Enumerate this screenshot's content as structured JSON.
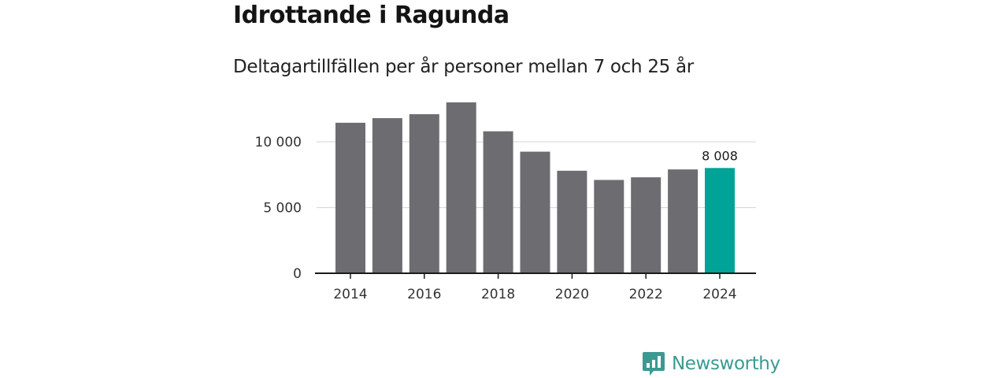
{
  "chart_data": {
    "type": "bar",
    "title": "Idrottande i Ragunda",
    "subtitle": "Deltagartillfällen per år personer mellan 7 och 25 år",
    "categories": [
      "2014",
      "2015",
      "2016",
      "2017",
      "2018",
      "2019",
      "2020",
      "2021",
      "2022",
      "2023",
      "2024"
    ],
    "values": [
      11450,
      11800,
      12100,
      13000,
      10800,
      9250,
      7800,
      7100,
      7300,
      7900,
      8008
    ],
    "highlight_index": 10,
    "highlight_label": "8 008",
    "x_tick_labels": [
      "2014",
      "2016",
      "2018",
      "2020",
      "2022",
      "2024"
    ],
    "y_ticks": [
      0,
      5000,
      10000
    ],
    "y_tick_labels": [
      "0",
      "5 000",
      "10 000"
    ],
    "ylim": [
      0,
      13000
    ],
    "xlabel": "",
    "ylabel": "",
    "grid": true,
    "colors": {
      "bar": "#6d6c71",
      "highlight": "#00a397",
      "grid": "#d9d9d9",
      "axis": "#1a1a1a"
    }
  },
  "branding": {
    "name": "Newsworthy",
    "logo_icon": "bar-chart-speech-bubble-icon",
    "color": "#3a9a92"
  }
}
